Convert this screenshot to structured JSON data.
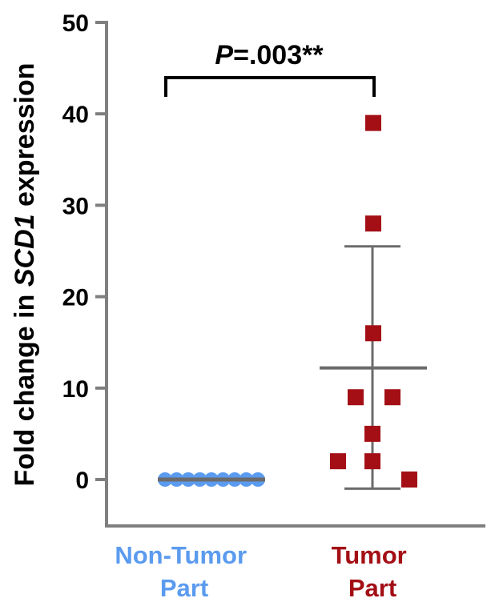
{
  "chart_data": {
    "type": "scatter",
    "ylabel": "Fold change in SCD1 expression",
    "ylabel_parts": {
      "before": "Fold change in ",
      "gene": "SCD1",
      "after": " expression"
    },
    "ylim": [
      0,
      50
    ],
    "yticks": [
      "0",
      "10",
      "20",
      "30",
      "40",
      "50"
    ],
    "categories": [
      "Non-Tumor Part",
      "Tumor Part"
    ],
    "category_lines": [
      [
        "Non-Tumor",
        "Part"
      ],
      [
        "Tumor",
        "Part"
      ]
    ],
    "series": [
      {
        "category": "Non-Tumor Part",
        "color": "#5b9bef",
        "marker": "circle",
        "values": [
          0,
          0,
          0,
          0,
          0,
          0,
          0,
          0,
          0
        ],
        "mean": 0
      },
      {
        "category": "Tumor Part",
        "color": "#a30f15",
        "marker": "square",
        "values": [
          39,
          28,
          16,
          9,
          9,
          5,
          2,
          2,
          0
        ],
        "mean": 12.2,
        "sd_upper": 25.5,
        "sd_lower": -1
      }
    ],
    "annotation": {
      "italic": "P",
      "text": "=.003**"
    },
    "grid": false,
    "colors": {
      "axis": "#7f7f7f",
      "mean_line": "#6b6b6b",
      "bracket": "#000000"
    }
  }
}
